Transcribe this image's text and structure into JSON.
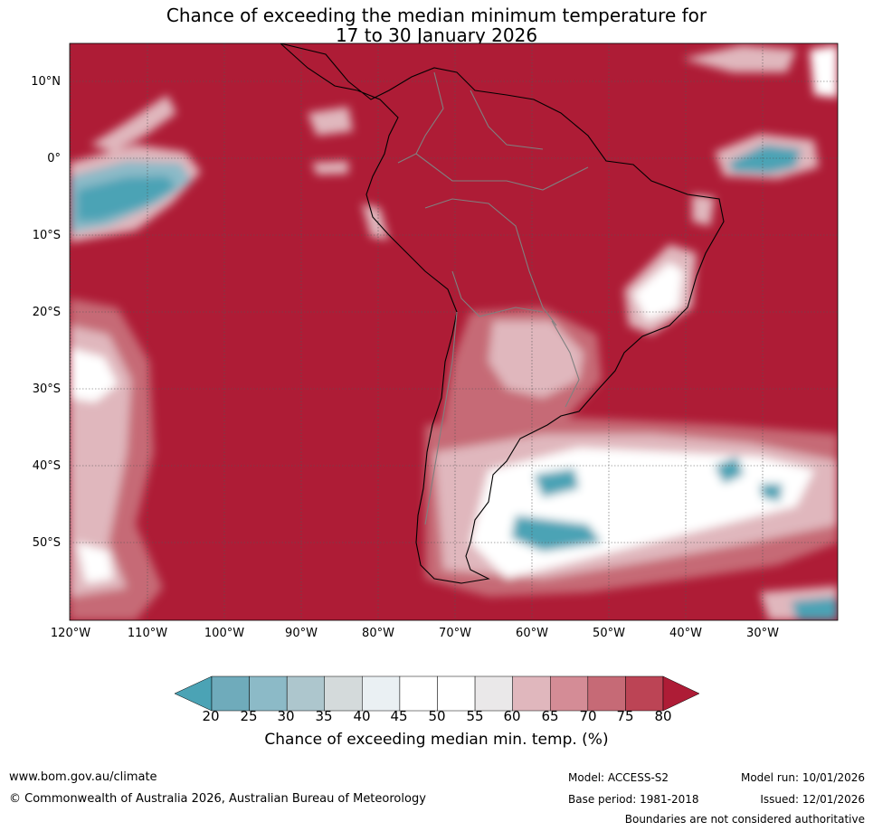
{
  "title_line1": "Chance of exceeding the median minimum temperature for",
  "title_line2": "17 to 30 January 2026",
  "lat_labels": [
    "10°N",
    "0°",
    "10°S",
    "20°S",
    "30°S",
    "40°S",
    "50°S"
  ],
  "lon_labels": [
    "120°W",
    "110°W",
    "100°W",
    "90°W",
    "80°W",
    "70°W",
    "60°W",
    "50°W",
    "40°W",
    "30°W"
  ],
  "colorbar": {
    "ticks": [
      "20",
      "25",
      "30",
      "35",
      "40",
      "45",
      "50",
      "55",
      "60",
      "65",
      "70",
      "75",
      "80"
    ],
    "label": "Chance of exceeding median min. temp. (%)",
    "colors": {
      "below": "#4ba3b5",
      "bins": [
        "#6fabbb",
        "#8cbac7",
        "#adc6cd",
        "#d4dadb",
        "#eaf0f3",
        "#ffffff",
        "#ffffff",
        "#eae8e9",
        "#e0b7bd",
        "#d48c96",
        "#c66a76",
        "#bc4455"
      ],
      "above": "#ae1c36"
    }
  },
  "map_colors": {
    "high": "#ae1c36",
    "mid": "#c66a76",
    "light": "#e0b7bd",
    "neutral": "#ffffff",
    "cool": "#8cbac7",
    "cold": "#4ba3b5"
  },
  "footer": {
    "website": "www.bom.gov.au/climate",
    "copyright": "© Commonwealth of Australia 2026, Australian Bureau of Meteorology",
    "model": "Model: ACCESS-S2",
    "model_run": "Model run: 10/01/2026",
    "base_period": "Base period: 1981-2018",
    "issued": "Issued: 12/01/2026",
    "disclaimer": "Boundaries are not considered authoritative"
  }
}
